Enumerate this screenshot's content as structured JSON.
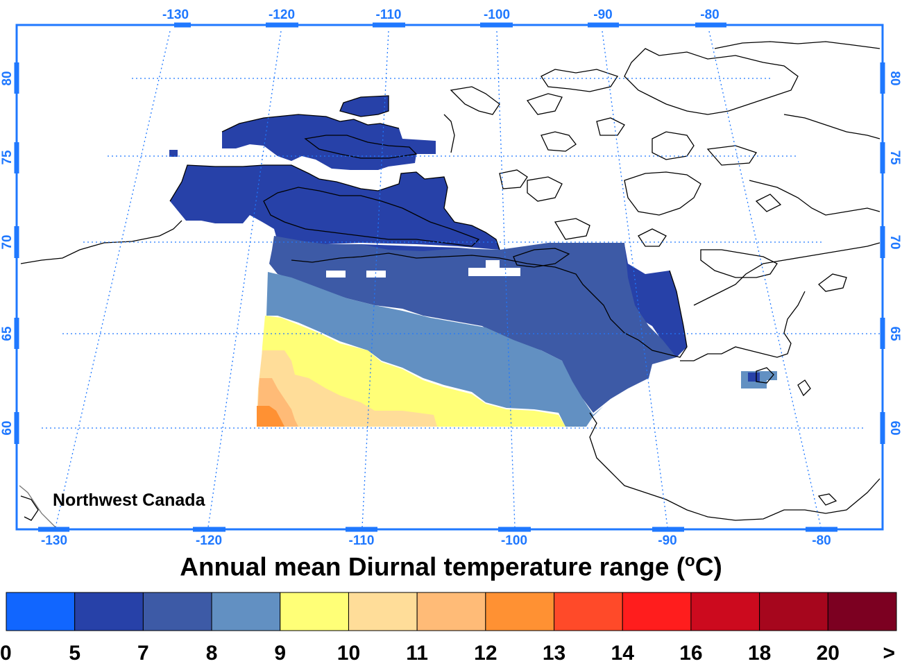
{
  "title": "Annual mean Diurnal temperature range (",
  "title_unit_degree": "o",
  "title_unit_suffix": "C)",
  "region_label": "Northwest Canada",
  "top_lon_ticks": [
    "-130",
    "-120",
    "-110",
    "-100",
    "-90",
    "-80"
  ],
  "bottom_lon_ticks": [
    "-130",
    "-120",
    "-110",
    "-100",
    "-90",
    "-80"
  ],
  "lat_ticks": [
    "80",
    "75",
    "70",
    "65",
    "60"
  ],
  "colorbar": {
    "colors": [
      "#1166ff",
      "#2741a8",
      "#3d5aa6",
      "#6290c2",
      "#ffff77",
      "#ffdd99",
      "#ffbb77",
      "#ff9133",
      "#ff4a29",
      "#ff1d1d",
      "#cc0a1e",
      "#a6061d",
      "#7c0021"
    ],
    "labels": [
      "0",
      "5",
      "7",
      "8",
      "9",
      "10",
      "11",
      "12",
      "13",
      "14",
      "16",
      "18",
      "20",
      ">"
    ]
  },
  "colors": {
    "axis": "#1f78ff",
    "grid": "#1f78ff",
    "coast": "#000000"
  }
}
